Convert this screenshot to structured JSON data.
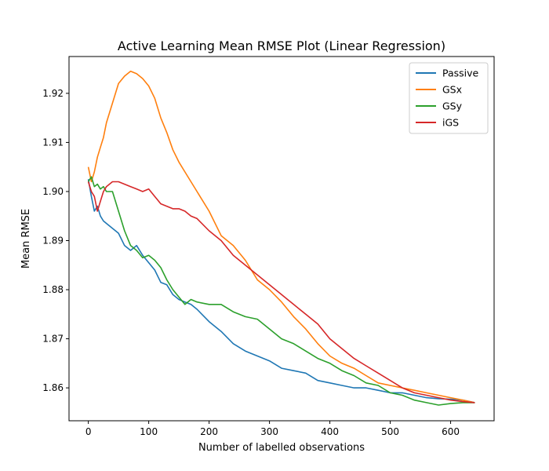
{
  "chart_data": {
    "type": "line",
    "title": "Active Learning Mean RMSE Plot (Linear Regression)",
    "xlabel": "Number of labelled observations",
    "ylabel": "Mean RMSE",
    "xlim": [
      -32,
      672
    ],
    "ylim": [
      1.8533,
      1.9275
    ],
    "xticks": [
      0,
      100,
      200,
      300,
      400,
      500,
      600
    ],
    "xtick_labels": [
      "0",
      "100",
      "200",
      "300",
      "400",
      "500",
      "600"
    ],
    "yticks": [
      1.86,
      1.87,
      1.88,
      1.89,
      1.9,
      1.91,
      1.92
    ],
    "ytick_labels": [
      "1.86",
      "1.87",
      "1.88",
      "1.89",
      "1.90",
      "1.91",
      "1.92"
    ],
    "grid": false,
    "legend_position": "top-right",
    "series": [
      {
        "name": "Passive",
        "color": "#1f77b4",
        "x": [
          0,
          5,
          10,
          15,
          20,
          25,
          30,
          40,
          50,
          60,
          70,
          80,
          90,
          100,
          110,
          120,
          130,
          140,
          150,
          160,
          170,
          180,
          200,
          220,
          240,
          260,
          280,
          300,
          320,
          340,
          360,
          380,
          400,
          420,
          440,
          460,
          480,
          500,
          520,
          540,
          560,
          580,
          600,
          620,
          640
        ],
        "y": [
          1.9025,
          1.899,
          1.896,
          1.897,
          1.895,
          1.894,
          1.8935,
          1.8925,
          1.8915,
          1.889,
          1.888,
          1.889,
          1.887,
          1.8855,
          1.884,
          1.8815,
          1.881,
          1.879,
          1.878,
          1.8775,
          1.877,
          1.876,
          1.8735,
          1.8715,
          1.869,
          1.8675,
          1.8665,
          1.8655,
          1.864,
          1.8635,
          1.863,
          1.8615,
          1.861,
          1.8605,
          1.86,
          1.86,
          1.8595,
          1.859,
          1.859,
          1.8585,
          1.858,
          1.8578,
          1.8577,
          1.8575,
          1.857
        ]
      },
      {
        "name": "GSx",
        "color": "#ff7f0e",
        "x": [
          0,
          5,
          10,
          15,
          20,
          25,
          30,
          40,
          50,
          60,
          70,
          80,
          90,
          100,
          110,
          120,
          130,
          140,
          150,
          160,
          170,
          180,
          200,
          220,
          240,
          260,
          280,
          300,
          320,
          340,
          360,
          380,
          400,
          420,
          440,
          460,
          480,
          500,
          520,
          540,
          560,
          580,
          600,
          620,
          640
        ],
        "y": [
          1.905,
          1.902,
          1.904,
          1.907,
          1.909,
          1.911,
          1.914,
          1.918,
          1.922,
          1.9235,
          1.9245,
          1.924,
          1.923,
          1.9215,
          1.919,
          1.915,
          1.912,
          1.9085,
          1.906,
          1.904,
          1.902,
          1.9,
          1.896,
          1.891,
          1.889,
          1.886,
          1.882,
          1.88,
          1.8775,
          1.8745,
          1.872,
          1.869,
          1.8665,
          1.865,
          1.864,
          1.8625,
          1.861,
          1.8605,
          1.86,
          1.8595,
          1.859,
          1.8585,
          1.858,
          1.8575,
          1.857
        ]
      },
      {
        "name": "GSy",
        "color": "#2ca02c",
        "x": [
          0,
          5,
          10,
          15,
          20,
          25,
          30,
          40,
          50,
          60,
          70,
          80,
          90,
          100,
          110,
          120,
          130,
          140,
          150,
          160,
          170,
          180,
          200,
          220,
          240,
          260,
          280,
          300,
          320,
          340,
          360,
          380,
          400,
          420,
          440,
          460,
          480,
          500,
          520,
          540,
          560,
          580,
          600,
          620,
          640
        ],
        "y": [
          1.902,
          1.903,
          1.901,
          1.9015,
          1.9005,
          1.901,
          1.9,
          1.9,
          1.896,
          1.892,
          1.889,
          1.888,
          1.8865,
          1.887,
          1.886,
          1.8845,
          1.882,
          1.88,
          1.8785,
          1.877,
          1.878,
          1.8775,
          1.877,
          1.877,
          1.8755,
          1.8745,
          1.874,
          1.872,
          1.87,
          1.869,
          1.8675,
          1.866,
          1.865,
          1.8635,
          1.8625,
          1.861,
          1.8605,
          1.859,
          1.8585,
          1.8575,
          1.857,
          1.8565,
          1.8568,
          1.857,
          1.857
        ]
      },
      {
        "name": "iGS",
        "color": "#d62728",
        "x": [
          0,
          5,
          10,
          15,
          20,
          25,
          30,
          40,
          50,
          60,
          70,
          80,
          90,
          100,
          110,
          120,
          130,
          140,
          150,
          160,
          170,
          180,
          200,
          220,
          240,
          260,
          280,
          300,
          320,
          340,
          360,
          380,
          400,
          420,
          440,
          460,
          480,
          500,
          520,
          540,
          560,
          580,
          600,
          620,
          640
        ],
        "y": [
          1.902,
          1.9,
          1.899,
          1.896,
          1.898,
          1.9,
          1.901,
          1.902,
          1.902,
          1.9015,
          1.901,
          1.9005,
          1.9,
          1.9005,
          1.899,
          1.8975,
          1.897,
          1.8965,
          1.8965,
          1.896,
          1.895,
          1.8945,
          1.892,
          1.89,
          1.887,
          1.885,
          1.883,
          1.881,
          1.879,
          1.877,
          1.875,
          1.873,
          1.87,
          1.868,
          1.866,
          1.8645,
          1.863,
          1.8615,
          1.86,
          1.859,
          1.8585,
          1.858,
          1.8575,
          1.8572,
          1.857
        ]
      }
    ]
  }
}
